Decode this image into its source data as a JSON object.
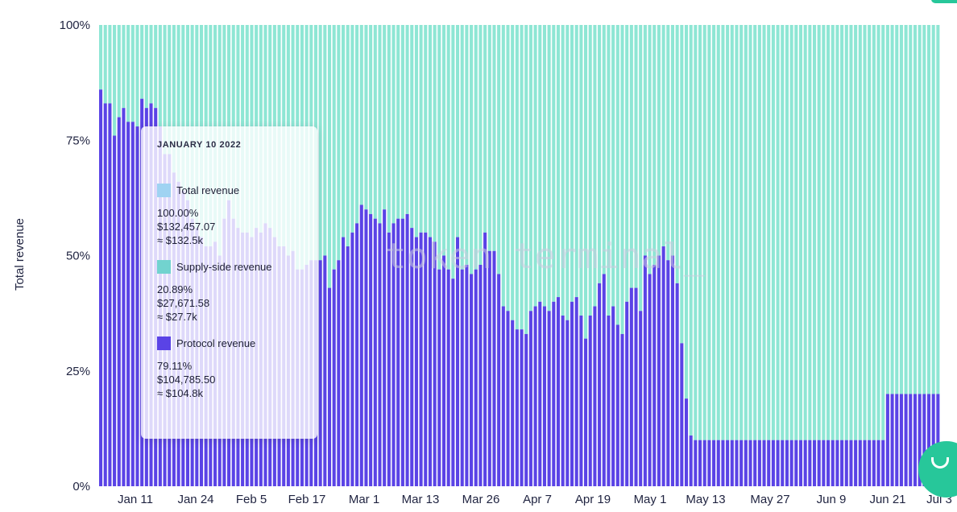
{
  "chart_data": {
    "type": "bar",
    "stacked": true,
    "percent": true,
    "ylabel": "Total revenue",
    "ylim": [
      0,
      100
    ],
    "yticks": [
      "0%",
      "25%",
      "50%",
      "75%",
      "100%"
    ],
    "xticks": [
      "Jan 11",
      "Jan 24",
      "Feb 5",
      "Feb 17",
      "Mar 1",
      "Mar 13",
      "Mar 26",
      "Apr 7",
      "Apr 19",
      "May 1",
      "May 13",
      "May 27",
      "Jun 9",
      "Jun 21",
      "Jul 3"
    ],
    "watermark": "token terminal_",
    "colors": {
      "protocol": "#5a43e6",
      "supply": "#8ee6d4",
      "total_swatch": "#9fd3f2",
      "supply_swatch": "#72d3cf",
      "protocol_swatch": "#5a43e6",
      "bar_gap": "#ffffff"
    },
    "series": [
      {
        "name": "Protocol revenue",
        "values": [
          86,
          83,
          83,
          76,
          80,
          82,
          79,
          79,
          78,
          84,
          82,
          83,
          82,
          78,
          72,
          72,
          68,
          66,
          64,
          62,
          58,
          56,
          54,
          52,
          52,
          53,
          50,
          58,
          62,
          58,
          56,
          55,
          55,
          54,
          56,
          55,
          57,
          56,
          54,
          52,
          52,
          50,
          51,
          47,
          47,
          48,
          49,
          49,
          49,
          50,
          43,
          47,
          49,
          54,
          52,
          55,
          57,
          61,
          60,
          59,
          58,
          57,
          60,
          55,
          57,
          58,
          58,
          59,
          56,
          54,
          55,
          55,
          54,
          53,
          47,
          50,
          47,
          45,
          54,
          47,
          48,
          46,
          47,
          48,
          55,
          51,
          51,
          46,
          39,
          38,
          36,
          34,
          34,
          33,
          38,
          39,
          40,
          39,
          38,
          40,
          41,
          37,
          36,
          40,
          41,
          37,
          32,
          37,
          39,
          44,
          46,
          37,
          39,
          35,
          33,
          40,
          43,
          43,
          38,
          50,
          46,
          48,
          50,
          52,
          49,
          50,
          44,
          31,
          19,
          11,
          10,
          10,
          10,
          10,
          10,
          10,
          10,
          10,
          10,
          10,
          10,
          10,
          10,
          10,
          10,
          10,
          10,
          10,
          10,
          10,
          10,
          10,
          10,
          10,
          10,
          10,
          10,
          10,
          10,
          10,
          10,
          10,
          10,
          10,
          10,
          10,
          10,
          10,
          10,
          10,
          10,
          10,
          20,
          20,
          20,
          20,
          20,
          20,
          20,
          20,
          20,
          20,
          20,
          20
        ]
      },
      {
        "name": "Supply-side revenue",
        "values": [
          14,
          17,
          17,
          24,
          20,
          18,
          21,
          21,
          22,
          16,
          18,
          17,
          18,
          22,
          28,
          28,
          32,
          34,
          36,
          38,
          42,
          44,
          46,
          48,
          48,
          47,
          50,
          42,
          38,
          42,
          44,
          45,
          45,
          46,
          44,
          45,
          43,
          44,
          46,
          48,
          48,
          50,
          49,
          53,
          53,
          52,
          51,
          51,
          51,
          50,
          57,
          53,
          51,
          46,
          48,
          45,
          43,
          39,
          40,
          41,
          42,
          43,
          40,
          45,
          43,
          42,
          42,
          41,
          44,
          46,
          45,
          45,
          46,
          47,
          53,
          50,
          53,
          55,
          46,
          53,
          52,
          54,
          53,
          52,
          45,
          49,
          49,
          54,
          61,
          62,
          64,
          66,
          66,
          67,
          62,
          61,
          60,
          61,
          62,
          60,
          59,
          63,
          64,
          60,
          59,
          63,
          68,
          63,
          61,
          56,
          54,
          63,
          61,
          65,
          67,
          60,
          57,
          57,
          62,
          50,
          54,
          52,
          50,
          48,
          51,
          50,
          56,
          69,
          81,
          89,
          90,
          90,
          90,
          90,
          90,
          90,
          90,
          90,
          90,
          90,
          90,
          90,
          90,
          90,
          90,
          90,
          90,
          90,
          90,
          90,
          90,
          90,
          90,
          90,
          90,
          90,
          90,
          90,
          90,
          90,
          90,
          90,
          90,
          90,
          90,
          90,
          90,
          90,
          90,
          90,
          90,
          90,
          80,
          80,
          80,
          80,
          80,
          80,
          80,
          80,
          80,
          80,
          80,
          80
        ]
      }
    ]
  },
  "tooltip": {
    "date": "JANUARY 10 2022",
    "items": [
      {
        "label": "Total revenue",
        "percent": "100.00%",
        "value": "$132,457.07",
        "short": "≈ $132.5k"
      },
      {
        "label": "Supply-side revenue",
        "percent": "20.89%",
        "value": "$27,671.58",
        "short": "≈ $27.7k"
      },
      {
        "label": "Protocol revenue",
        "percent": "79.11%",
        "value": "$104,785.50",
        "short": "≈ $104.8k"
      }
    ]
  },
  "widget": {
    "icon": "chat-bubble-icon"
  }
}
